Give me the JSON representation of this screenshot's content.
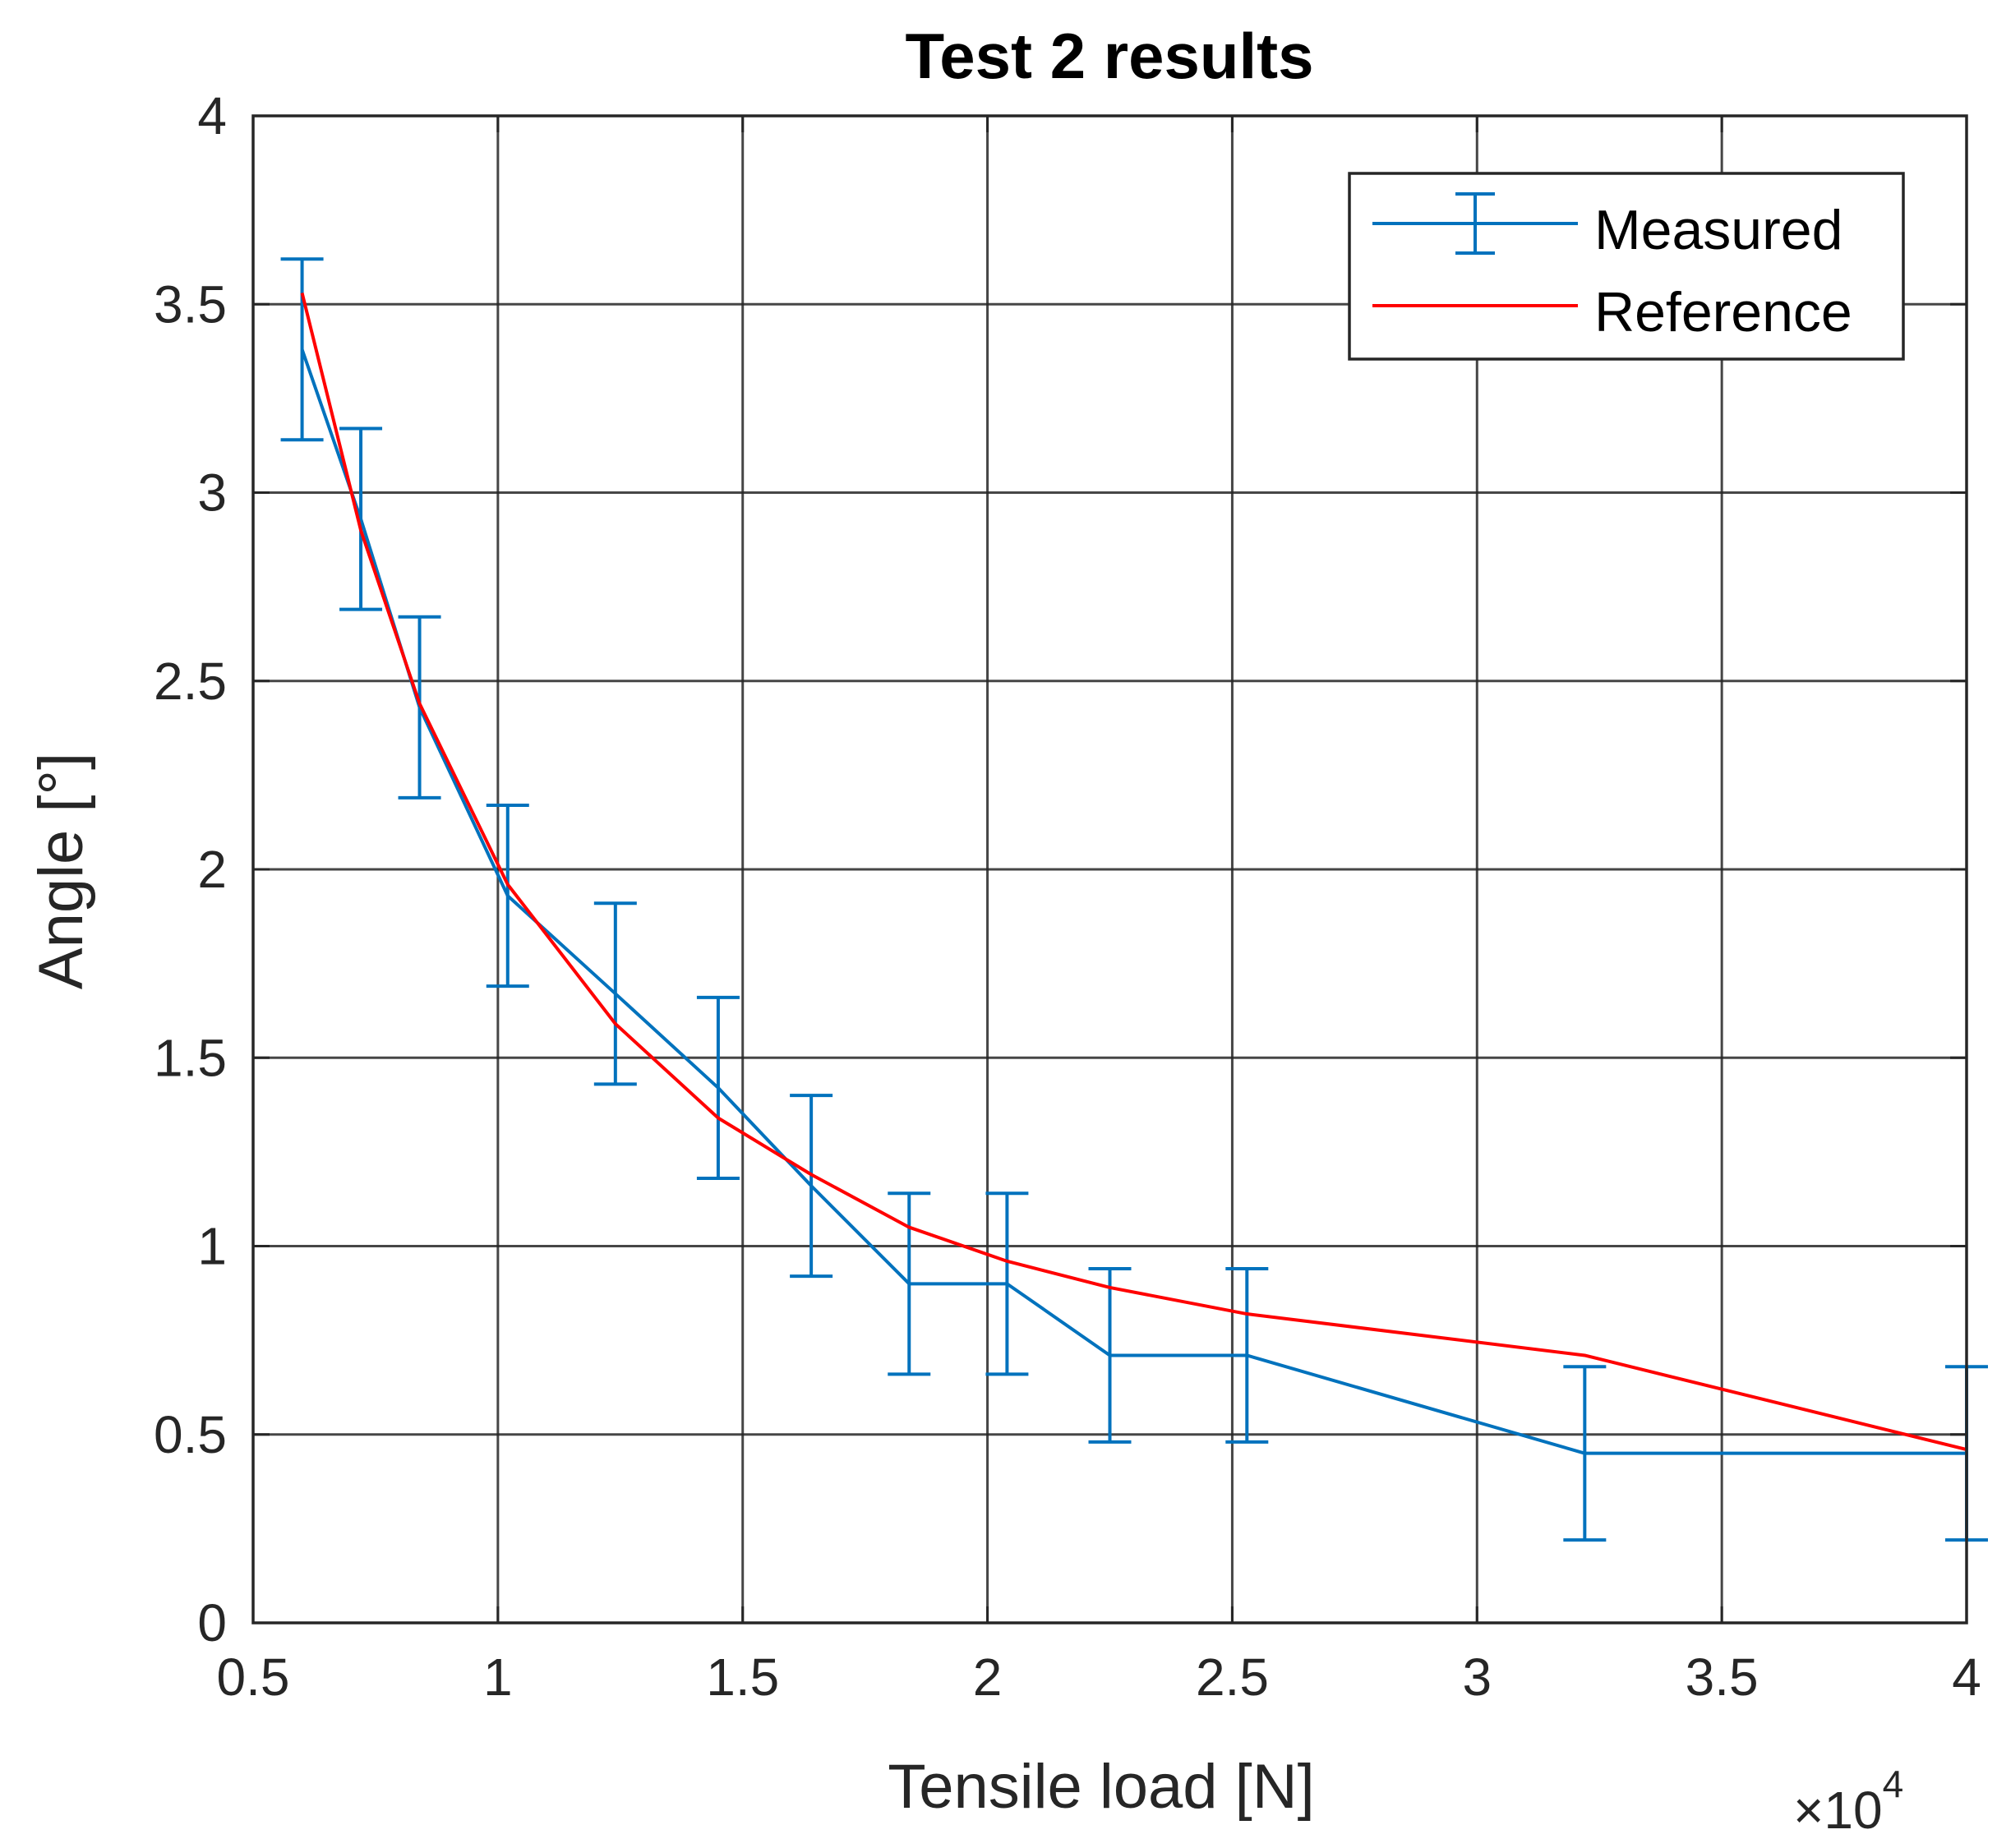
{
  "chart_data": {
    "type": "line",
    "title": "Test 2 results",
    "xlabel": "Tensile load [N]",
    "ylabel": "Angle [°]",
    "x_multiplier_label": "×10",
    "x_multiplier_exponent": "4",
    "xlim": [
      0.5,
      4
    ],
    "ylim": [
      0,
      4
    ],
    "xticks": [
      0.5,
      1,
      1.5,
      2,
      2.5,
      3,
      3.5,
      4
    ],
    "xtick_labels": [
      "0.5",
      "1",
      "1.5",
      "2",
      "2.5",
      "3",
      "3.5",
      "4"
    ],
    "yticks": [
      0,
      0.5,
      1,
      1.5,
      2,
      2.5,
      3,
      3.5,
      4
    ],
    "ytick_labels": [
      "0",
      "0.5",
      "1",
      "1.5",
      "2",
      "2.5",
      "3",
      "3.5",
      "4"
    ],
    "grid": true,
    "legend_position": "top-right",
    "series": [
      {
        "name": "Measured",
        "color": "#0072BD",
        "errorbars": true,
        "x": [
          0.6,
          0.72,
          0.84,
          1.02,
          1.24,
          1.45,
          1.64,
          1.84,
          2.04,
          2.25,
          2.53,
          3.22,
          4.0
        ],
        "y": [
          3.38,
          2.93,
          2.43,
          1.93,
          1.67,
          1.42,
          1.16,
          0.9,
          0.9,
          0.71,
          0.71,
          0.45,
          0.45
        ],
        "err": [
          0.24,
          0.24,
          0.24,
          0.24,
          0.24,
          0.24,
          0.24,
          0.24,
          0.24,
          0.23,
          0.23,
          0.23,
          0.23
        ]
      },
      {
        "name": "Reference",
        "color": "#FF0000",
        "errorbars": false,
        "x": [
          0.6,
          0.72,
          0.84,
          1.02,
          1.24,
          1.45,
          1.64,
          1.84,
          2.04,
          2.25,
          2.53,
          3.22,
          4.0
        ],
        "y": [
          3.53,
          2.9,
          2.44,
          1.96,
          1.59,
          1.34,
          1.19,
          1.05,
          0.96,
          0.89,
          0.82,
          0.71,
          0.46
        ]
      }
    ]
  }
}
